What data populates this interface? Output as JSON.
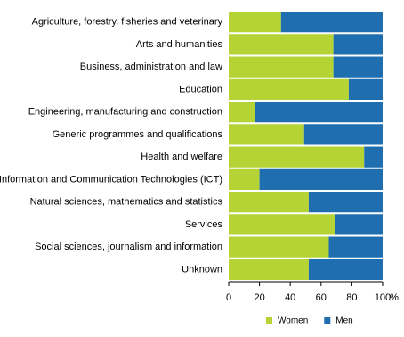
{
  "chart_data": {
    "type": "stacked-barh",
    "categories": [
      "Agriculture, forestry, fisheries and veterinary",
      "Arts and humanities",
      "Business, administration and law",
      "Education",
      "Engineering, manufacturing and construction",
      "Generic programmes and qualifications",
      "Health and welfare",
      "Information and Communication Technologies (ICT)",
      "Natural sciences, mathematics and statistics",
      "Services",
      "Social sciences, journalism and information",
      "Unknown"
    ],
    "series": [
      {
        "name": "Women",
        "color": "#b5d334",
        "values": [
          34,
          68,
          68,
          78,
          17,
          49,
          88,
          20,
          52,
          69,
          65,
          52
        ]
      },
      {
        "name": "Men",
        "color": "#1f6fb0",
        "values": [
          66,
          32,
          32,
          22,
          83,
          51,
          12,
          80,
          48,
          31,
          35,
          48
        ]
      }
    ],
    "xlim": [
      0,
      100
    ],
    "xticks": [
      0,
      20,
      40,
      60,
      80,
      100
    ],
    "xlabel": "%",
    "legend": "bottom"
  }
}
